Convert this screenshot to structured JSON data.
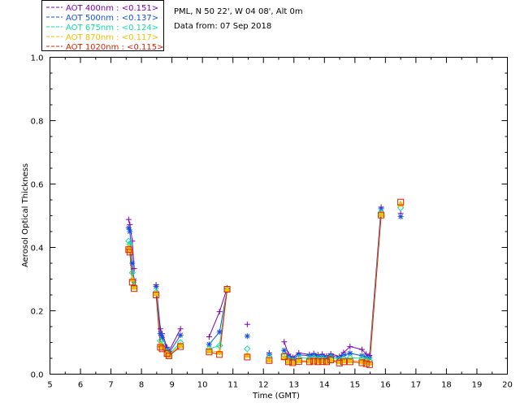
{
  "header": {
    "location": "PML, N 50 22', W 04 08', Alt 0m",
    "date_line": "Data from: 07 Sep 2018"
  },
  "chart_data": {
    "type": "scatter",
    "xlabel": "Time (GMT)",
    "ylabel": "Aerosol Optical Thickness",
    "xlim": [
      5,
      20
    ],
    "ylim": [
      0,
      1.0
    ],
    "x_ticks": [
      "5",
      "6",
      "7",
      "8",
      "9",
      "10",
      "11",
      "12",
      "13",
      "14",
      "15",
      "16",
      "17",
      "18",
      "19",
      "20"
    ],
    "y_ticks": [
      "0.0",
      "0.2",
      "0.4",
      "0.6",
      "0.8",
      "1.0"
    ],
    "grid": false,
    "legend_position": "top-left",
    "x": [
      7.58,
      7.62,
      7.7,
      7.76,
      8.48,
      8.62,
      8.68,
      8.84,
      8.9,
      9.28,
      10.22,
      10.56,
      10.81,
      11.47,
      12.19,
      12.68,
      12.82,
      12.96,
      13.16,
      13.51,
      13.65,
      13.79,
      13.93,
      14.07,
      14.21,
      14.49,
      14.63,
      14.84,
      15.23,
      15.37,
      15.48,
      15.86,
      16.5
    ],
    "series": [
      {
        "name": "AOT  400nm : <0.151>",
        "color": "#7f00b2",
        "marker": "plus",
        "values": [
          0.488,
          0.472,
          0.42,
          0.333,
          0.282,
          0.143,
          0.128,
          0.085,
          0.072,
          0.143,
          0.118,
          0.197,
          0.272,
          0.157,
          0.067,
          0.102,
          0.063,
          0.053,
          0.067,
          0.062,
          0.065,
          0.061,
          0.063,
          0.057,
          0.064,
          0.056,
          0.068,
          0.087,
          0.078,
          0.063,
          0.059,
          0.527,
          0.507
        ]
      },
      {
        "name": "AOT  500nm : <0.137>",
        "color": "#1450e0",
        "marker": "asterisk",
        "values": [
          0.462,
          0.45,
          0.35,
          0.296,
          0.277,
          0.128,
          0.116,
          0.079,
          0.066,
          0.123,
          0.094,
          0.133,
          0.265,
          0.12,
          0.062,
          0.075,
          0.056,
          0.049,
          0.061,
          0.058,
          0.06,
          0.056,
          0.057,
          0.052,
          0.059,
          0.052,
          0.059,
          0.066,
          0.058,
          0.053,
          0.051,
          0.522,
          0.497
        ]
      },
      {
        "name": "AOT  675nm : <0.124>",
        "color": "#10e0a0",
        "marker": "diamond",
        "values": [
          0.42,
          0.41,
          0.32,
          0.28,
          0.26,
          0.105,
          0.098,
          0.072,
          0.062,
          0.1,
          0.08,
          0.09,
          0.268,
          0.08,
          0.055,
          0.06,
          0.048,
          0.043,
          0.052,
          0.05,
          0.052,
          0.049,
          0.05,
          0.047,
          0.053,
          0.047,
          0.05,
          0.052,
          0.05,
          0.046,
          0.043,
          0.51,
          0.525
        ]
      },
      {
        "name": "AOT  870nm : <0.117>",
        "color": "#f0c000",
        "marker": "triangle",
        "values": [
          0.4,
          0.39,
          0.3,
          0.275,
          0.255,
          0.092,
          0.087,
          0.066,
          0.06,
          0.092,
          0.074,
          0.07,
          0.268,
          0.06,
          0.046,
          0.052,
          0.041,
          0.038,
          0.043,
          0.042,
          0.044,
          0.042,
          0.043,
          0.04,
          0.046,
          0.04,
          0.043,
          0.043,
          0.041,
          0.039,
          0.036,
          0.505,
          0.537
        ]
      },
      {
        "name": "AOT 1020nm : <0.115>",
        "color": "#e02000",
        "marker": "square",
        "values": [
          0.393,
          0.385,
          0.29,
          0.27,
          0.25,
          0.085,
          0.08,
          0.065,
          0.058,
          0.087,
          0.07,
          0.062,
          0.268,
          0.054,
          0.043,
          0.055,
          0.039,
          0.036,
          0.04,
          0.039,
          0.041,
          0.039,
          0.04,
          0.039,
          0.045,
          0.035,
          0.039,
          0.039,
          0.036,
          0.033,
          0.03,
          0.502,
          0.543
        ]
      }
    ]
  }
}
